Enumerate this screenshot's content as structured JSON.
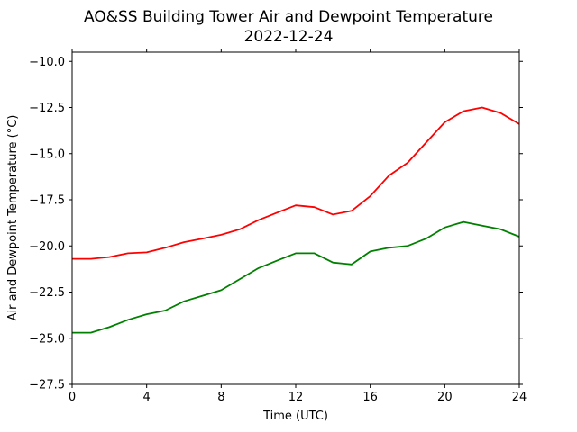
{
  "chart_data": {
    "type": "line",
    "title": "AO&SS Building Tower Air and Dewpoint Temperature",
    "subtitle": "2022-12-24",
    "xlabel": "Time (UTC)",
    "ylabel": "Air and Dewpoint Temperature (°C)",
    "xlim": [
      0,
      24
    ],
    "ylim": [
      -27.5,
      -9.5
    ],
    "x_ticks": [
      0,
      4,
      8,
      12,
      16,
      20,
      24
    ],
    "y_ticks": [
      -27.5,
      -25.0,
      -22.5,
      -20.0,
      -17.5,
      -15.0,
      -12.5,
      -10.0
    ],
    "x_tick_labels": [
      "0",
      "4",
      "8",
      "12",
      "16",
      "20",
      "24"
    ],
    "y_tick_labels": [
      "−27.5",
      "−25.0",
      "−22.5",
      "−20.0",
      "−17.5",
      "−15.0",
      "−12.5",
      "−10.0"
    ],
    "grid": false,
    "legend": "none",
    "series": [
      {
        "color": "#ff0000",
        "x": [
          0,
          1,
          2,
          3,
          4,
          5,
          6,
          7,
          8,
          9,
          10,
          11,
          12,
          13,
          14,
          15,
          16,
          17,
          18,
          19,
          20,
          21,
          22,
          23,
          24
        ],
        "values": [
          -20.7,
          -20.7,
          -20.6,
          -20.4,
          -20.35,
          -20.1,
          -19.8,
          -19.6,
          -19.4,
          -19.1,
          -18.6,
          -18.2,
          -17.8,
          -17.9,
          -18.3,
          -18.1,
          -17.3,
          -16.2,
          -15.5,
          -14.4,
          -13.3,
          -12.7,
          -12.5,
          -12.8,
          -13.4
        ]
      },
      {
        "color": "#008000",
        "x": [
          0,
          1,
          2,
          3,
          4,
          5,
          6,
          7,
          8,
          9,
          10,
          11,
          12,
          13,
          14,
          15,
          16,
          17,
          18,
          19,
          20,
          21,
          22,
          23,
          24
        ],
        "values": [
          -24.7,
          -24.7,
          -24.4,
          -24.0,
          -23.7,
          -23.5,
          -23.0,
          -22.7,
          -22.4,
          -21.8,
          -21.2,
          -20.8,
          -20.4,
          -20.4,
          -20.9,
          -21.0,
          -20.3,
          -20.1,
          -20.0,
          -19.6,
          -19.0,
          -18.7,
          -18.9,
          -19.1,
          -19.5
        ]
      }
    ]
  }
}
